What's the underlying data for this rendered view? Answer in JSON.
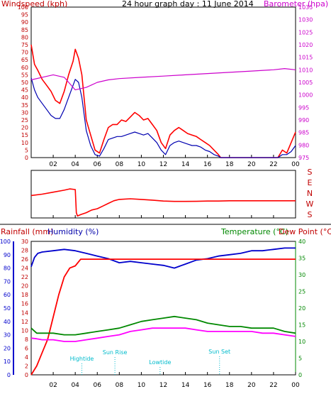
{
  "colors": {
    "wind": "#c00000",
    "gust": "#ff0000",
    "speed": "#0000b0",
    "baro": "#cc00cc",
    "rain": "#ff0000",
    "humidity": "#0000cc",
    "temp": "#008800",
    "dew": "#ff00ff",
    "axis_blue": "#0000cc",
    "axis_green": "#008800",
    "tide": "#00bbcc"
  },
  "chart_data": [
    {
      "type": "line",
      "title": "24 hour graph day : 11 June 2014",
      "ylabel": "Windspeed (kph)",
      "y2label": "Barometer (hpa)",
      "ylim": [
        0,
        100
      ],
      "y2lim": [
        975,
        1035
      ],
      "yticks": [
        "0",
        "5",
        "10",
        "15",
        "20",
        "25",
        "30",
        "35",
        "40",
        "45",
        "50",
        "55",
        "60",
        "65",
        "70",
        "75",
        "80",
        "85",
        "90",
        "95",
        "100"
      ],
      "y2ticks": [
        "975",
        "980",
        "985",
        "990",
        "995",
        "1000",
        "1005",
        "1010",
        "1015",
        "1020",
        "1025",
        "1030",
        "1035"
      ],
      "xticks": [
        "02",
        "04",
        "06",
        "08",
        "10",
        "12",
        "14",
        "16",
        "18",
        "20",
        "22",
        "00"
      ],
      "series": [
        {
          "key": "gust",
          "x": [
            0,
            0.3,
            0.6,
            1,
            1.4,
            1.8,
            2.2,
            2.6,
            3,
            3.4,
            3.8,
            4,
            4.3,
            4.6,
            5,
            5.4,
            5.8,
            6.2,
            6.6,
            7,
            7.4,
            7.8,
            8.2,
            8.6,
            9,
            9.4,
            9.8,
            10.2,
            10.6,
            11,
            11.4,
            11.8,
            12.2,
            12.6,
            13,
            13.4,
            13.8,
            14.2,
            14.6,
            15,
            15.4,
            15.8,
            16.2,
            16.6,
            17,
            17.2,
            17.6,
            18,
            18.4,
            18.8,
            19.2,
            19.6,
            20,
            20.4,
            20.8,
            21.2,
            21.6,
            22,
            22.4,
            22.8,
            23.2,
            23.6,
            24
          ],
          "y": [
            75,
            62,
            58,
            52,
            48,
            44,
            38,
            36,
            44,
            55,
            64,
            72,
            66,
            55,
            25,
            15,
            5,
            3,
            12,
            20,
            22,
            22,
            25,
            24,
            27,
            30,
            28,
            25,
            26,
            22,
            18,
            10,
            6,
            15,
            18,
            20,
            18,
            16,
            15,
            14,
            12,
            10,
            8,
            5,
            2,
            0,
            0,
            0,
            0,
            0,
            0,
            0,
            0,
            0,
            0,
            0,
            0,
            0,
            0,
            5,
            3,
            10,
            17
          ]
        },
        {
          "key": "speed",
          "x": [
            0,
            0.3,
            0.6,
            1,
            1.4,
            1.8,
            2.2,
            2.6,
            3,
            3.4,
            3.8,
            4,
            4.3,
            4.6,
            5,
            5.4,
            5.8,
            6.2,
            6.6,
            7,
            7.4,
            7.8,
            8.2,
            8.6,
            9,
            9.4,
            9.8,
            10.2,
            10.6,
            11,
            11.4,
            11.8,
            12.2,
            12.6,
            13,
            13.4,
            13.8,
            14.2,
            14.6,
            15,
            15.4,
            15.8,
            16.2,
            16.6,
            17,
            17.2,
            17.6,
            18,
            18.4,
            18.8,
            19.2,
            19.6,
            20,
            20.4,
            20.8,
            21.2,
            21.6,
            22,
            22.4,
            22.8,
            23.2,
            23.6,
            24
          ],
          "y": [
            53,
            45,
            40,
            36,
            32,
            28,
            26,
            26,
            32,
            40,
            48,
            52,
            50,
            40,
            18,
            8,
            2,
            1,
            6,
            12,
            13,
            14,
            14,
            15,
            16,
            17,
            16,
            15,
            16,
            13,
            10,
            5,
            2,
            8,
            10,
            11,
            10,
            9,
            8,
            8,
            7,
            5,
            4,
            2,
            1,
            0,
            0,
            0,
            0,
            0,
            0,
            0,
            0,
            0,
            0,
            0,
            0,
            0,
            0,
            2,
            2,
            4,
            8
          ]
        },
        {
          "key": "baro",
          "x": [
            0,
            1,
            2,
            3,
            4,
            5,
            6,
            7,
            8,
            10,
            12,
            14,
            16,
            18,
            20,
            22,
            23,
            24
          ],
          "y": [
            1006,
            1007,
            1008,
            1007,
            1002,
            1003,
            1005,
            1006,
            1006.5,
            1007,
            1007.5,
            1008,
            1008.5,
            1009,
            1009.5,
            1010,
            1010.5,
            1010
          ]
        }
      ]
    },
    {
      "type": "line",
      "ylabels": [
        "S",
        "E",
        "N",
        "W",
        "S"
      ],
      "xticks": [
        "02",
        "04",
        "06",
        "08",
        "10",
        "12",
        "14",
        "16",
        "18",
        "20",
        "22",
        "00"
      ],
      "series": [
        {
          "key": "direction",
          "x": [
            0,
            1,
            2,
            3,
            3.5,
            4,
            4.1,
            4.2,
            4.5,
            5,
            5.5,
            6,
            6.5,
            7,
            7.5,
            8,
            9,
            10,
            11,
            12,
            13,
            14,
            15,
            16,
            17,
            18,
            20,
            22,
            24
          ],
          "y": [
            170,
            180,
            195,
            210,
            220,
            215,
            40,
            15,
            25,
            40,
            60,
            70,
            90,
            110,
            130,
            140,
            145,
            140,
            135,
            128,
            125,
            125,
            126,
            128,
            128,
            130,
            130,
            130,
            130
          ]
        }
      ]
    },
    {
      "type": "line",
      "ylabel_left_outer": "Rainfall (mm)",
      "ylabel_left_inner": "Humidity (%)",
      "ylabel_right_temp": "Temperature (°C)",
      "ylabel_right_dew": "Dew Point (°C)",
      "humidity_ticks": [
        "0",
        "10",
        "20",
        "30",
        "40",
        "50",
        "60",
        "70",
        "80",
        "90",
        "100"
      ],
      "rain_ticks": [
        "0",
        "2",
        "4",
        "6",
        "8",
        "10",
        "12",
        "14",
        "16",
        "18",
        "20",
        "22",
        "24",
        "26",
        "28",
        "30"
      ],
      "temp_ticks": [
        "0",
        "5",
        "10",
        "15",
        "20",
        "25",
        "30",
        "35",
        "40"
      ],
      "xticks": [
        "02",
        "04",
        "06",
        "08",
        "10",
        "12",
        "14",
        "16",
        "18",
        "20",
        "22",
        "00"
      ],
      "ylim_humidity": [
        0,
        100
      ],
      "ylim_rain": [
        0,
        30
      ],
      "ylim_temp": [
        0,
        40
      ],
      "series": [
        {
          "key": "humidity",
          "x": [
            0,
            0.3,
            0.6,
            1,
            2,
            3,
            4,
            5,
            6,
            7,
            8,
            9,
            10,
            11,
            12,
            13,
            14,
            15,
            16,
            17,
            18,
            19,
            20,
            21,
            22,
            23,
            24
          ],
          "y": [
            81,
            88,
            91,
            92,
            93,
            94,
            93,
            91,
            89,
            87,
            84,
            85,
            84,
            83,
            82,
            80,
            83,
            86,
            87,
            89,
            90,
            91,
            93,
            93,
            94,
            95,
            95
          ]
        },
        {
          "key": "rain",
          "x": [
            0,
            0.5,
            1,
            1.5,
            2,
            2.5,
            3,
            3.5,
            4,
            4.5,
            5,
            8,
            12,
            16,
            20,
            24
          ],
          "y": [
            0,
            2,
            5,
            8,
            13,
            18,
            22,
            24,
            24.5,
            26,
            26,
            26,
            26,
            26,
            26,
            26
          ]
        },
        {
          "key": "temp",
          "x": [
            0,
            0.5,
            1,
            2,
            3,
            4,
            5,
            6,
            7,
            8,
            9,
            10,
            11,
            12,
            13,
            14,
            15,
            16,
            17,
            18,
            19,
            20,
            21,
            22,
            23,
            24
          ],
          "y": [
            14,
            12.5,
            12.5,
            12.5,
            12,
            12,
            12.5,
            13,
            13.5,
            14,
            15,
            16,
            16.5,
            17,
            17.5,
            17,
            16.5,
            15.5,
            15,
            14.5,
            14.5,
            14,
            14,
            14,
            13,
            12.5
          ]
        },
        {
          "key": "dew",
          "x": [
            0,
            0.5,
            1,
            2,
            3,
            4,
            5,
            6,
            7,
            8,
            9,
            10,
            11,
            12,
            13,
            14,
            15,
            16,
            17,
            18,
            19,
            20,
            21,
            22,
            23,
            24
          ],
          "y": [
            11,
            10.8,
            10.5,
            10.5,
            10,
            10,
            10.5,
            11,
            11.5,
            12,
            13,
            13.5,
            14,
            14,
            14,
            14,
            13.5,
            13,
            13,
            13,
            13,
            13,
            12.5,
            12.5,
            12,
            11.5
          ]
        }
      ],
      "annotations": [
        {
          "text": "Hightide",
          "x": 4.6
        },
        {
          "text": "Sun Rise",
          "x": 7.6
        },
        {
          "text": "Lowtide",
          "x": 11.7
        },
        {
          "text": "Sun Set",
          "x": 17.1
        }
      ]
    }
  ]
}
